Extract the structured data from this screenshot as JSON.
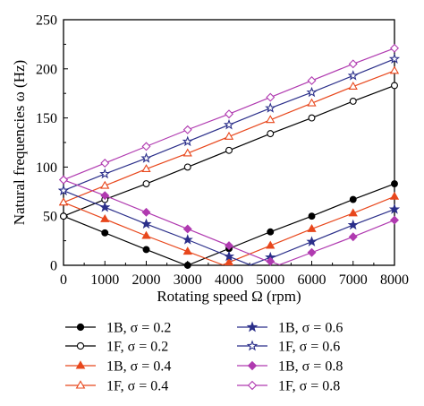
{
  "chart_data": {
    "type": "line",
    "xlabel": "Rotating speed Ω (rpm)",
    "ylabel": "Natural frequencies ω (Hz)",
    "xlim": [
      0,
      8000
    ],
    "ylim": [
      0,
      250
    ],
    "x_ticks": [
      0,
      1000,
      2000,
      3000,
      4000,
      5000,
      6000,
      7000,
      8000
    ],
    "y_ticks": [
      0,
      50,
      100,
      150,
      200,
      250
    ],
    "grid": false,
    "legend_position": "bottom",
    "series": [
      {
        "name": "1B, σ = 0.2",
        "color": "#000000",
        "marker": "circle",
        "filled": true,
        "x": [
          0,
          1000,
          2000,
          3000,
          4000,
          5000,
          6000,
          7000,
          8000
        ],
        "y": [
          50,
          33,
          16,
          0,
          17,
          34,
          50,
          67,
          83
        ]
      },
      {
        "name": "1F, σ = 0.2",
        "color": "#000000",
        "marker": "circle",
        "filled": false,
        "x": [
          0,
          1000,
          2000,
          3000,
          4000,
          5000,
          6000,
          7000,
          8000
        ],
        "y": [
          50,
          67,
          83,
          100,
          117,
          134,
          150,
          167,
          183
        ]
      },
      {
        "name": "1B, σ = 0.4",
        "color": "#e8471c",
        "marker": "triangle",
        "filled": true,
        "x": [
          0,
          1000,
          2000,
          3000,
          4000,
          5000,
          6000,
          7000,
          8000
        ],
        "y": [
          64,
          47,
          30,
          14,
          3,
          20,
          37,
          53,
          70
        ]
      },
      {
        "name": "1F, σ = 0.4",
        "color": "#e8471c",
        "marker": "triangle",
        "filled": false,
        "x": [
          0,
          1000,
          2000,
          3000,
          4000,
          5000,
          6000,
          7000,
          8000
        ],
        "y": [
          64,
          81,
          98,
          114,
          131,
          148,
          165,
          182,
          198
        ]
      },
      {
        "name": "1B, σ = 0.6",
        "color": "#2b2f8a",
        "marker": "star",
        "filled": true,
        "x": [
          0,
          1000,
          2000,
          3000,
          4000,
          5000,
          6000,
          7000,
          8000
        ],
        "y": [
          76,
          59,
          42,
          26,
          9,
          8,
          24,
          41,
          57
        ]
      },
      {
        "name": "1F, σ = 0.6",
        "color": "#2b2f8a",
        "marker": "star",
        "filled": false,
        "x": [
          0,
          1000,
          2000,
          3000,
          4000,
          5000,
          6000,
          7000,
          8000
        ],
        "y": [
          76,
          93,
          109,
          126,
          143,
          160,
          176,
          193,
          210
        ]
      },
      {
        "name": "1B, σ = 0.8",
        "color": "#b03ab0",
        "marker": "diamond",
        "filled": true,
        "x": [
          0,
          1000,
          2000,
          3000,
          4000,
          5000,
          6000,
          7000,
          8000
        ],
        "y": [
          87,
          71,
          54,
          37,
          20,
          4,
          13,
          29,
          46
        ]
      },
      {
        "name": "1F, σ = 0.8",
        "color": "#b03ab0",
        "marker": "diamond",
        "filled": false,
        "x": [
          0,
          1000,
          2000,
          3000,
          4000,
          5000,
          6000,
          7000,
          8000
        ],
        "y": [
          87,
          104,
          121,
          138,
          154,
          171,
          188,
          205,
          221
        ]
      }
    ]
  }
}
